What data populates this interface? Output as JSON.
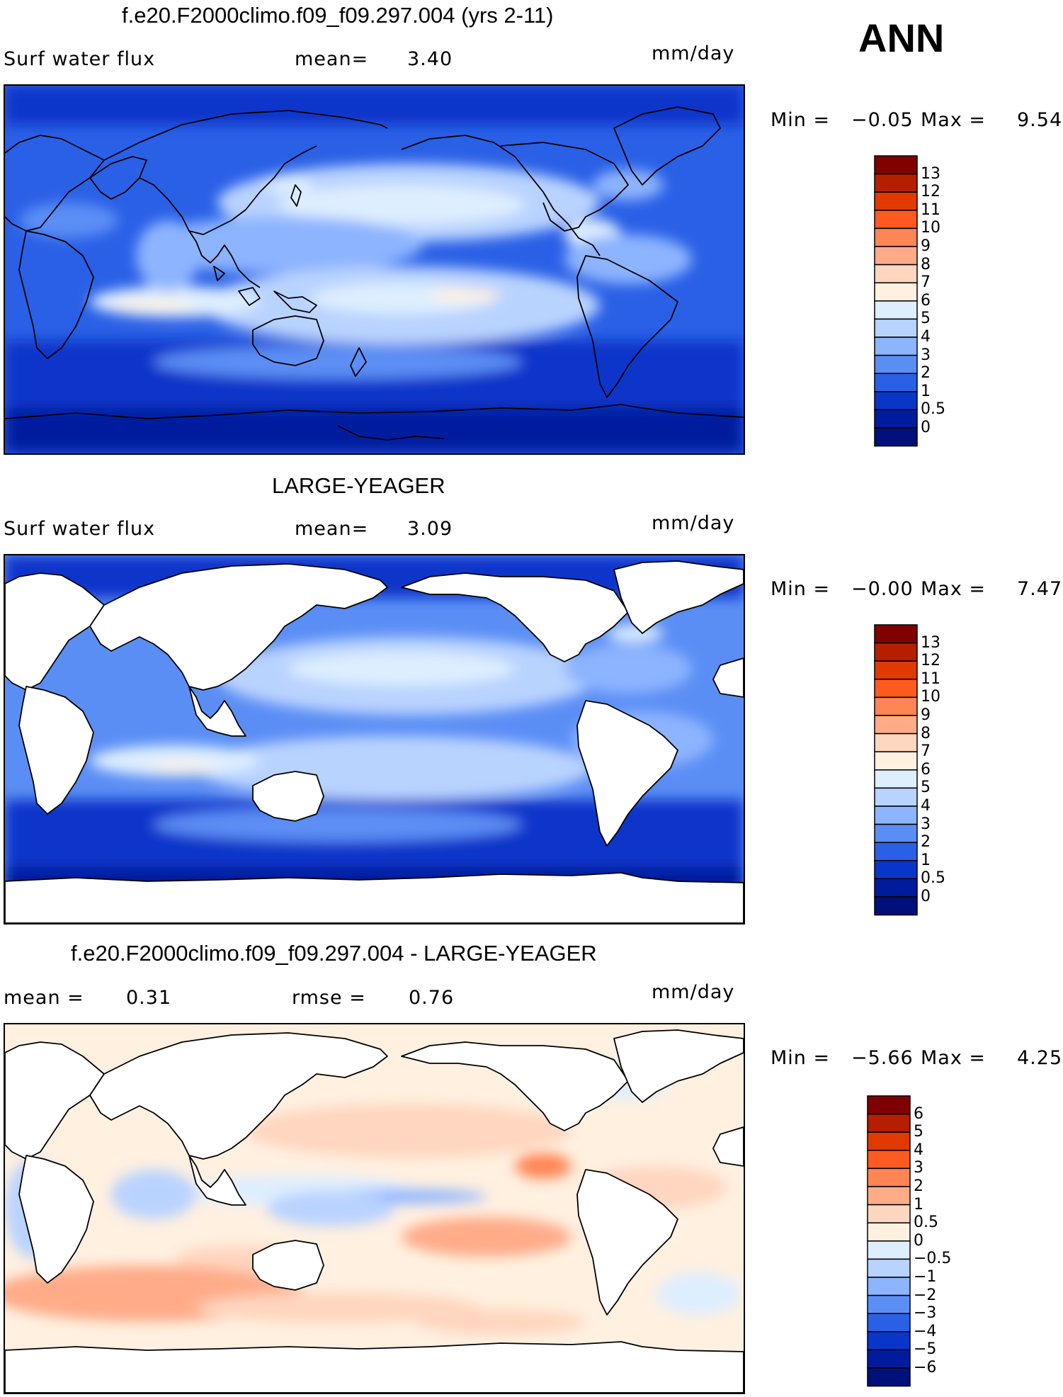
{
  "season": "ANN",
  "panels": [
    {
      "title": "f.e20.F2000climo.f09_f09.297.004 (yrs 2-11)",
      "left_label": "Surf water flux",
      "mid_label": "mean=",
      "mid_value": "3.40",
      "units": "mm/day",
      "min_label": "Min =",
      "min_value": "−0.05",
      "max_label": "Max =",
      "max_value": "9.54",
      "colorbar": {
        "levels": [
          "13",
          "12",
          "11",
          "10",
          "9",
          "8",
          "7",
          "6",
          "5",
          "4",
          "3",
          "2",
          "1",
          "0.5",
          "0"
        ],
        "colors": [
          "#800000",
          "#b51f00",
          "#e03a00",
          "#ff5a20",
          "#ff8555",
          "#ffab88",
          "#ffd6c0",
          "#fff0e0",
          "#ddeeff",
          "#b9d3ff",
          "#8db4ff",
          "#5b8ef5",
          "#2a60e6",
          "#0a35c9",
          "#001c9e",
          "#00107a"
        ]
      }
    },
    {
      "title": "LARGE-YEAGER",
      "left_label": "Surf water flux",
      "mid_label": "mean=",
      "mid_value": "3.09",
      "units": "mm/day",
      "min_label": "Min =",
      "min_value": "−0.00",
      "max_label": "Max =",
      "max_value": "7.47",
      "colorbar": {
        "levels": [
          "13",
          "12",
          "11",
          "10",
          "9",
          "8",
          "7",
          "6",
          "5",
          "4",
          "3",
          "2",
          "1",
          "0.5",
          "0"
        ],
        "colors": [
          "#800000",
          "#b51f00",
          "#e03a00",
          "#ff5a20",
          "#ff8555",
          "#ffab88",
          "#ffd6c0",
          "#fff0e0",
          "#ddeeff",
          "#b9d3ff",
          "#8db4ff",
          "#5b8ef5",
          "#2a60e6",
          "#0a35c9",
          "#001c9e",
          "#00107a"
        ]
      }
    },
    {
      "title": "f.e20.F2000climo.f09_f09.297.004 - LARGE-YEAGER",
      "left_label": "mean =",
      "left_value": "0.31",
      "mid_label": "rmse =",
      "mid_value": "0.76",
      "units": "mm/day",
      "min_label": "Min =",
      "min_value": "−5.66",
      "max_label": "Max =",
      "max_value": "4.25",
      "colorbar": {
        "levels": [
          "6",
          "5",
          "4",
          "3",
          "2",
          "1",
          "0.5",
          "0",
          "−0.5",
          "−1",
          "−2",
          "−3",
          "−4",
          "−5",
          "−6"
        ],
        "colors": [
          "#800000",
          "#b51f00",
          "#e03a00",
          "#ff5a20",
          "#ff8555",
          "#ffab88",
          "#ffd6c0",
          "#fff0e0",
          "#ddeeff",
          "#b9d3ff",
          "#8db4ff",
          "#5b8ef5",
          "#2a60e6",
          "#0a35c9",
          "#001c9e",
          "#00107a"
        ]
      }
    }
  ]
}
